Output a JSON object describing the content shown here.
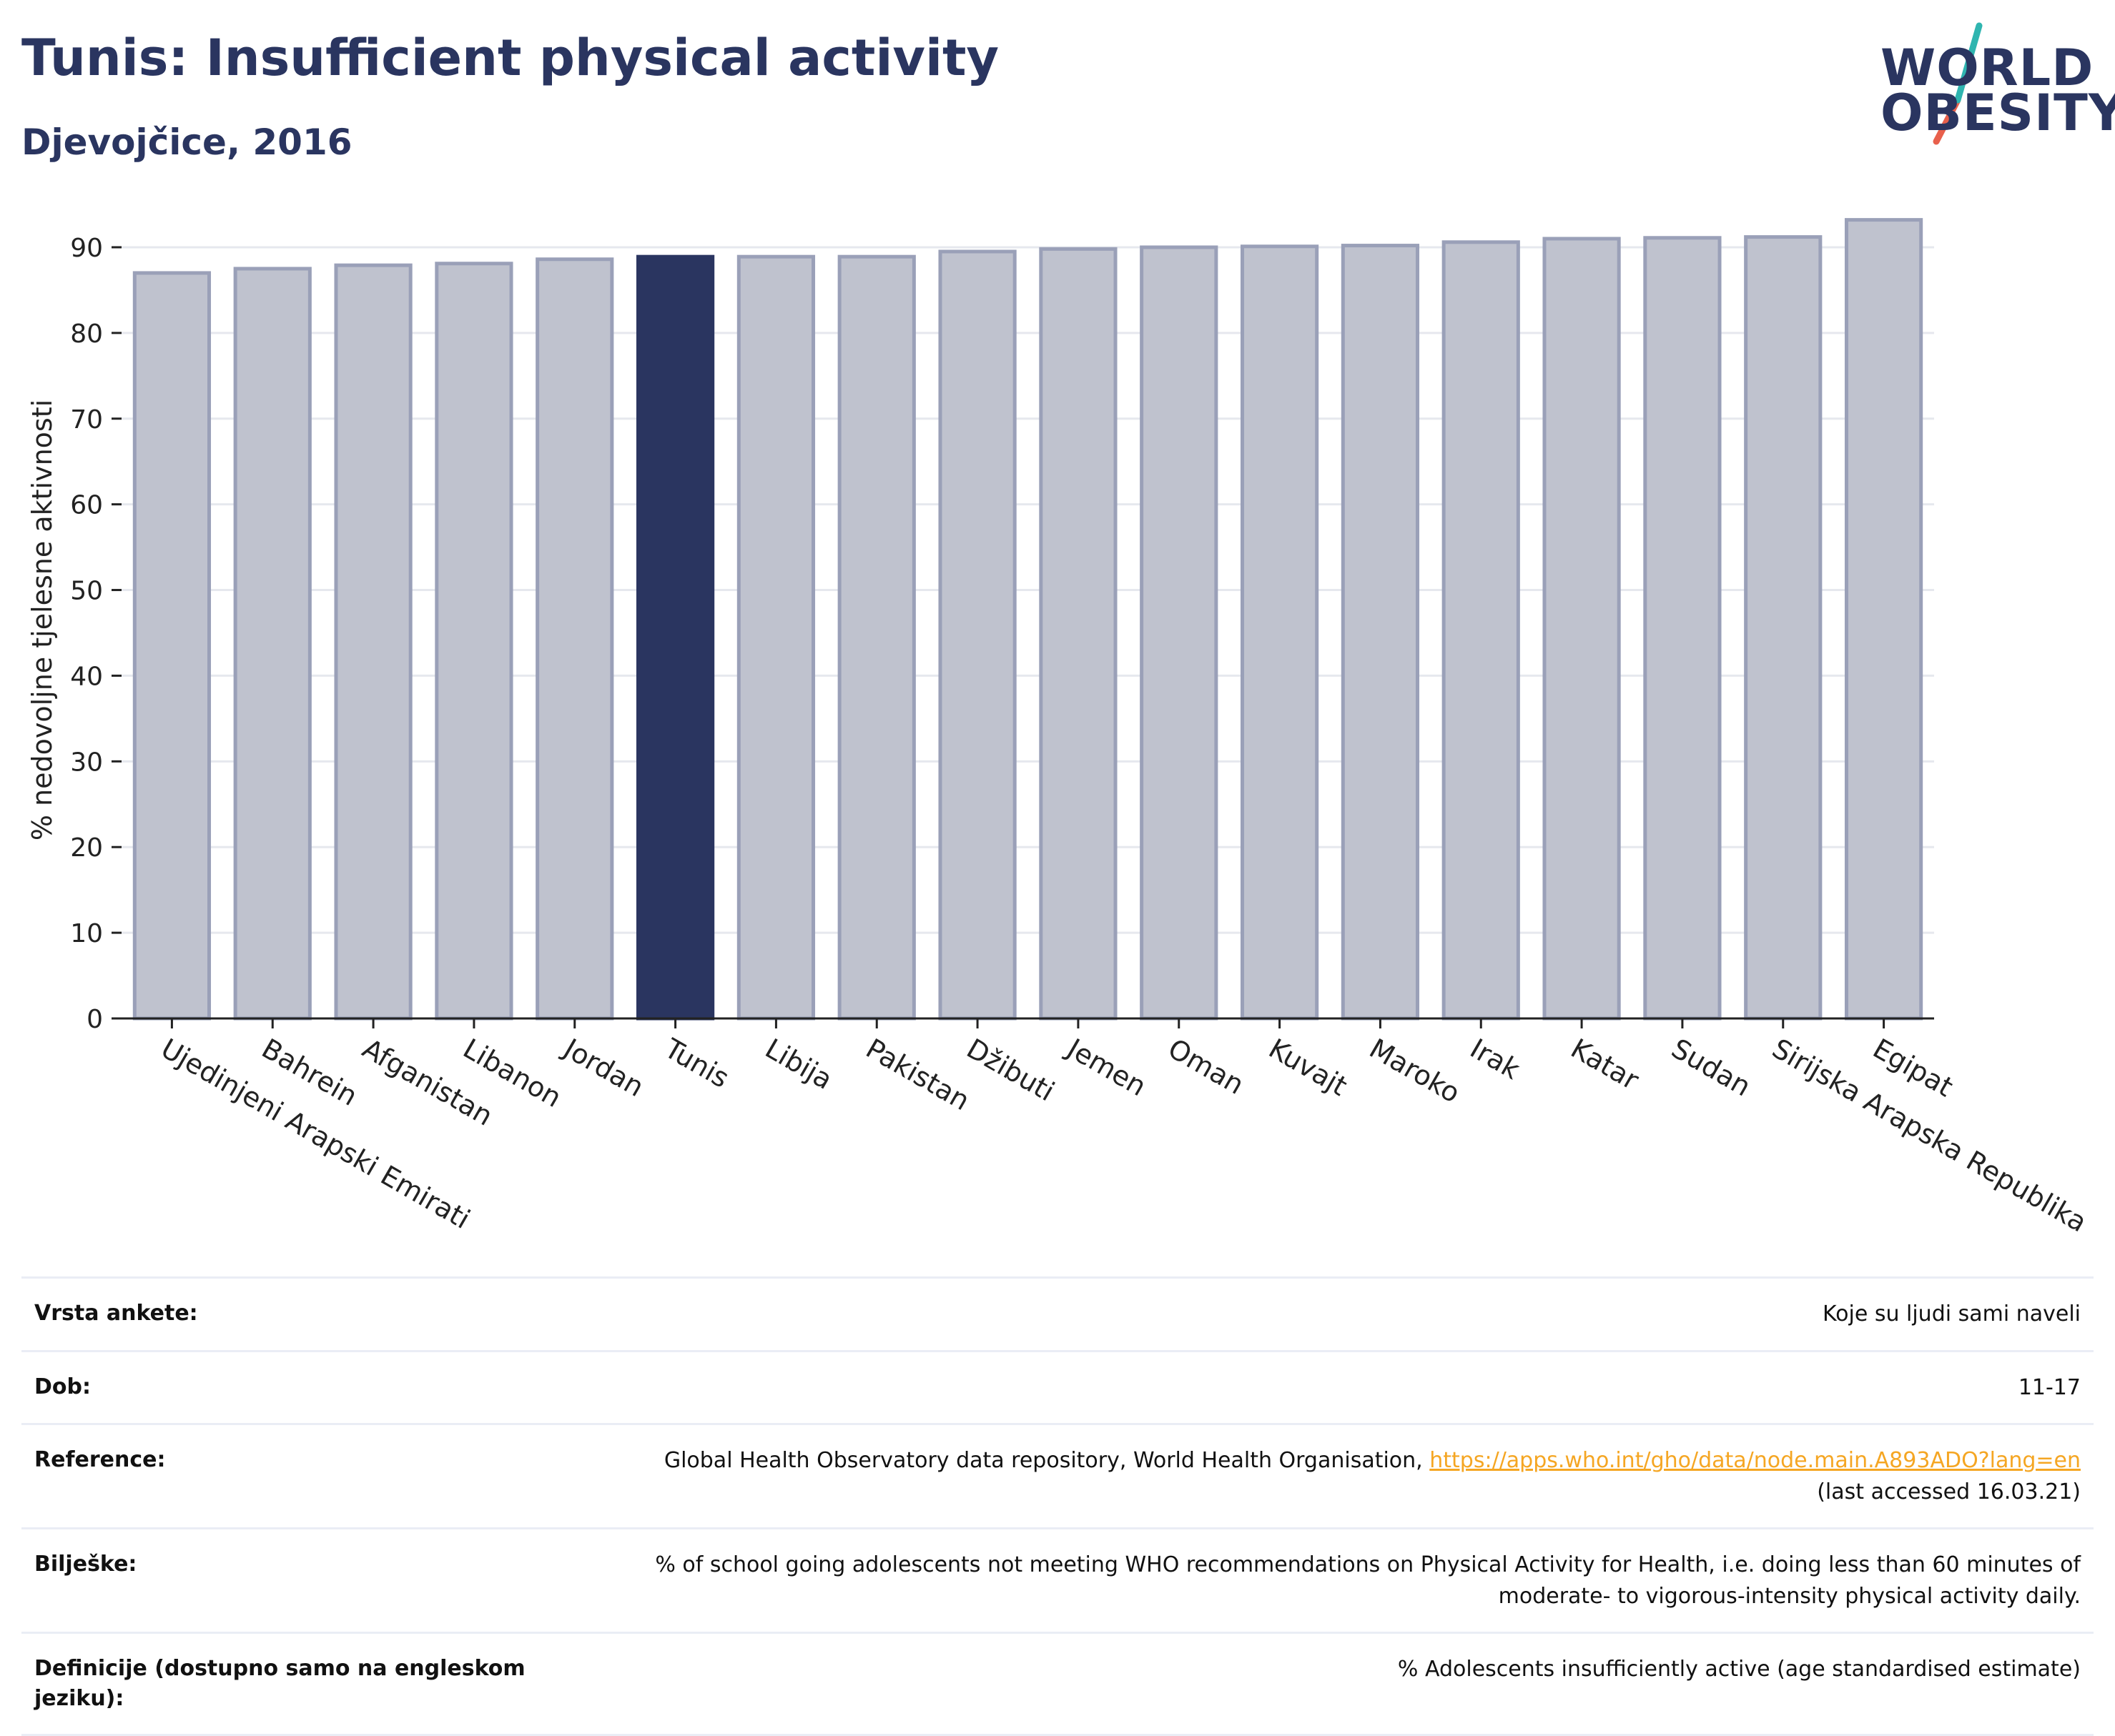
{
  "header": {
    "title": "Tunis: Insufficient physical activity",
    "subtitle": "Djevojčice, 2016"
  },
  "logo": {
    "line1": "WORLD",
    "line2": "OBESITY",
    "colors": {
      "text": "#2a3560",
      "slash_top": "#2fb5b0",
      "slash_bottom": "#e8604c"
    }
  },
  "colors": {
    "highlight": "#2a3560",
    "bar": "#bfc2ce",
    "bar_border": "#9aa0b8",
    "axis": "#222222",
    "grid": "#e6e8ee"
  },
  "chart_data": {
    "type": "bar",
    "title": "Tunis: Insufficient physical activity",
    "subtitle": "Djevojčice, 2016",
    "ylabel": "% nedovoljne tjelesne aktivnosti",
    "xlabel": "",
    "ylim": [
      0,
      93
    ],
    "yticks": [
      0,
      10,
      20,
      30,
      40,
      50,
      60,
      70,
      80,
      90
    ],
    "grid": true,
    "highlight": "Tunis",
    "categories": [
      "Ujedinjeni Arapski Emirati",
      "Bahrein",
      "Afganistan",
      "Libanon",
      "Jordan",
      "Tunis",
      "Libija",
      "Pakistan",
      "Džibuti",
      "Jemen",
      "Oman",
      "Kuvajt",
      "Maroko",
      "Irak",
      "Katar",
      "Sudan",
      "Sirijska Arapska Republika",
      "Egipat"
    ],
    "values": [
      87.0,
      87.5,
      87.9,
      88.1,
      88.6,
      88.9,
      88.9,
      88.9,
      89.5,
      89.8,
      90.0,
      90.1,
      90.2,
      90.6,
      91.0,
      91.1,
      91.2,
      93.2
    ]
  },
  "meta": {
    "survey_label": "Vrsta ankete:",
    "survey_value": "Koje su ljudi sami naveli",
    "age_label": "Dob:",
    "age_value": "11-17",
    "ref_label": "Reference:",
    "ref_text": "Global Health Observatory data repository, World Health Organisation,",
    "ref_link": "https://apps.who.int/gho/data/node.main.A893ADO?lang=en",
    "ref_accessed": "(last accessed 16.03.21)",
    "notes_label": "Bilješke:",
    "notes_value": "% of school going adolescents not meeting WHO recommendations on Physical Activity for Health, i.e. doing less than 60 minutes of moderate- to vigorous-intensity physical activity daily.",
    "def_label": "Definicije (dostupno samo na engleskom jeziku):",
    "def_value": "% Adolescents insufficiently active (age standardised estimate)"
  }
}
